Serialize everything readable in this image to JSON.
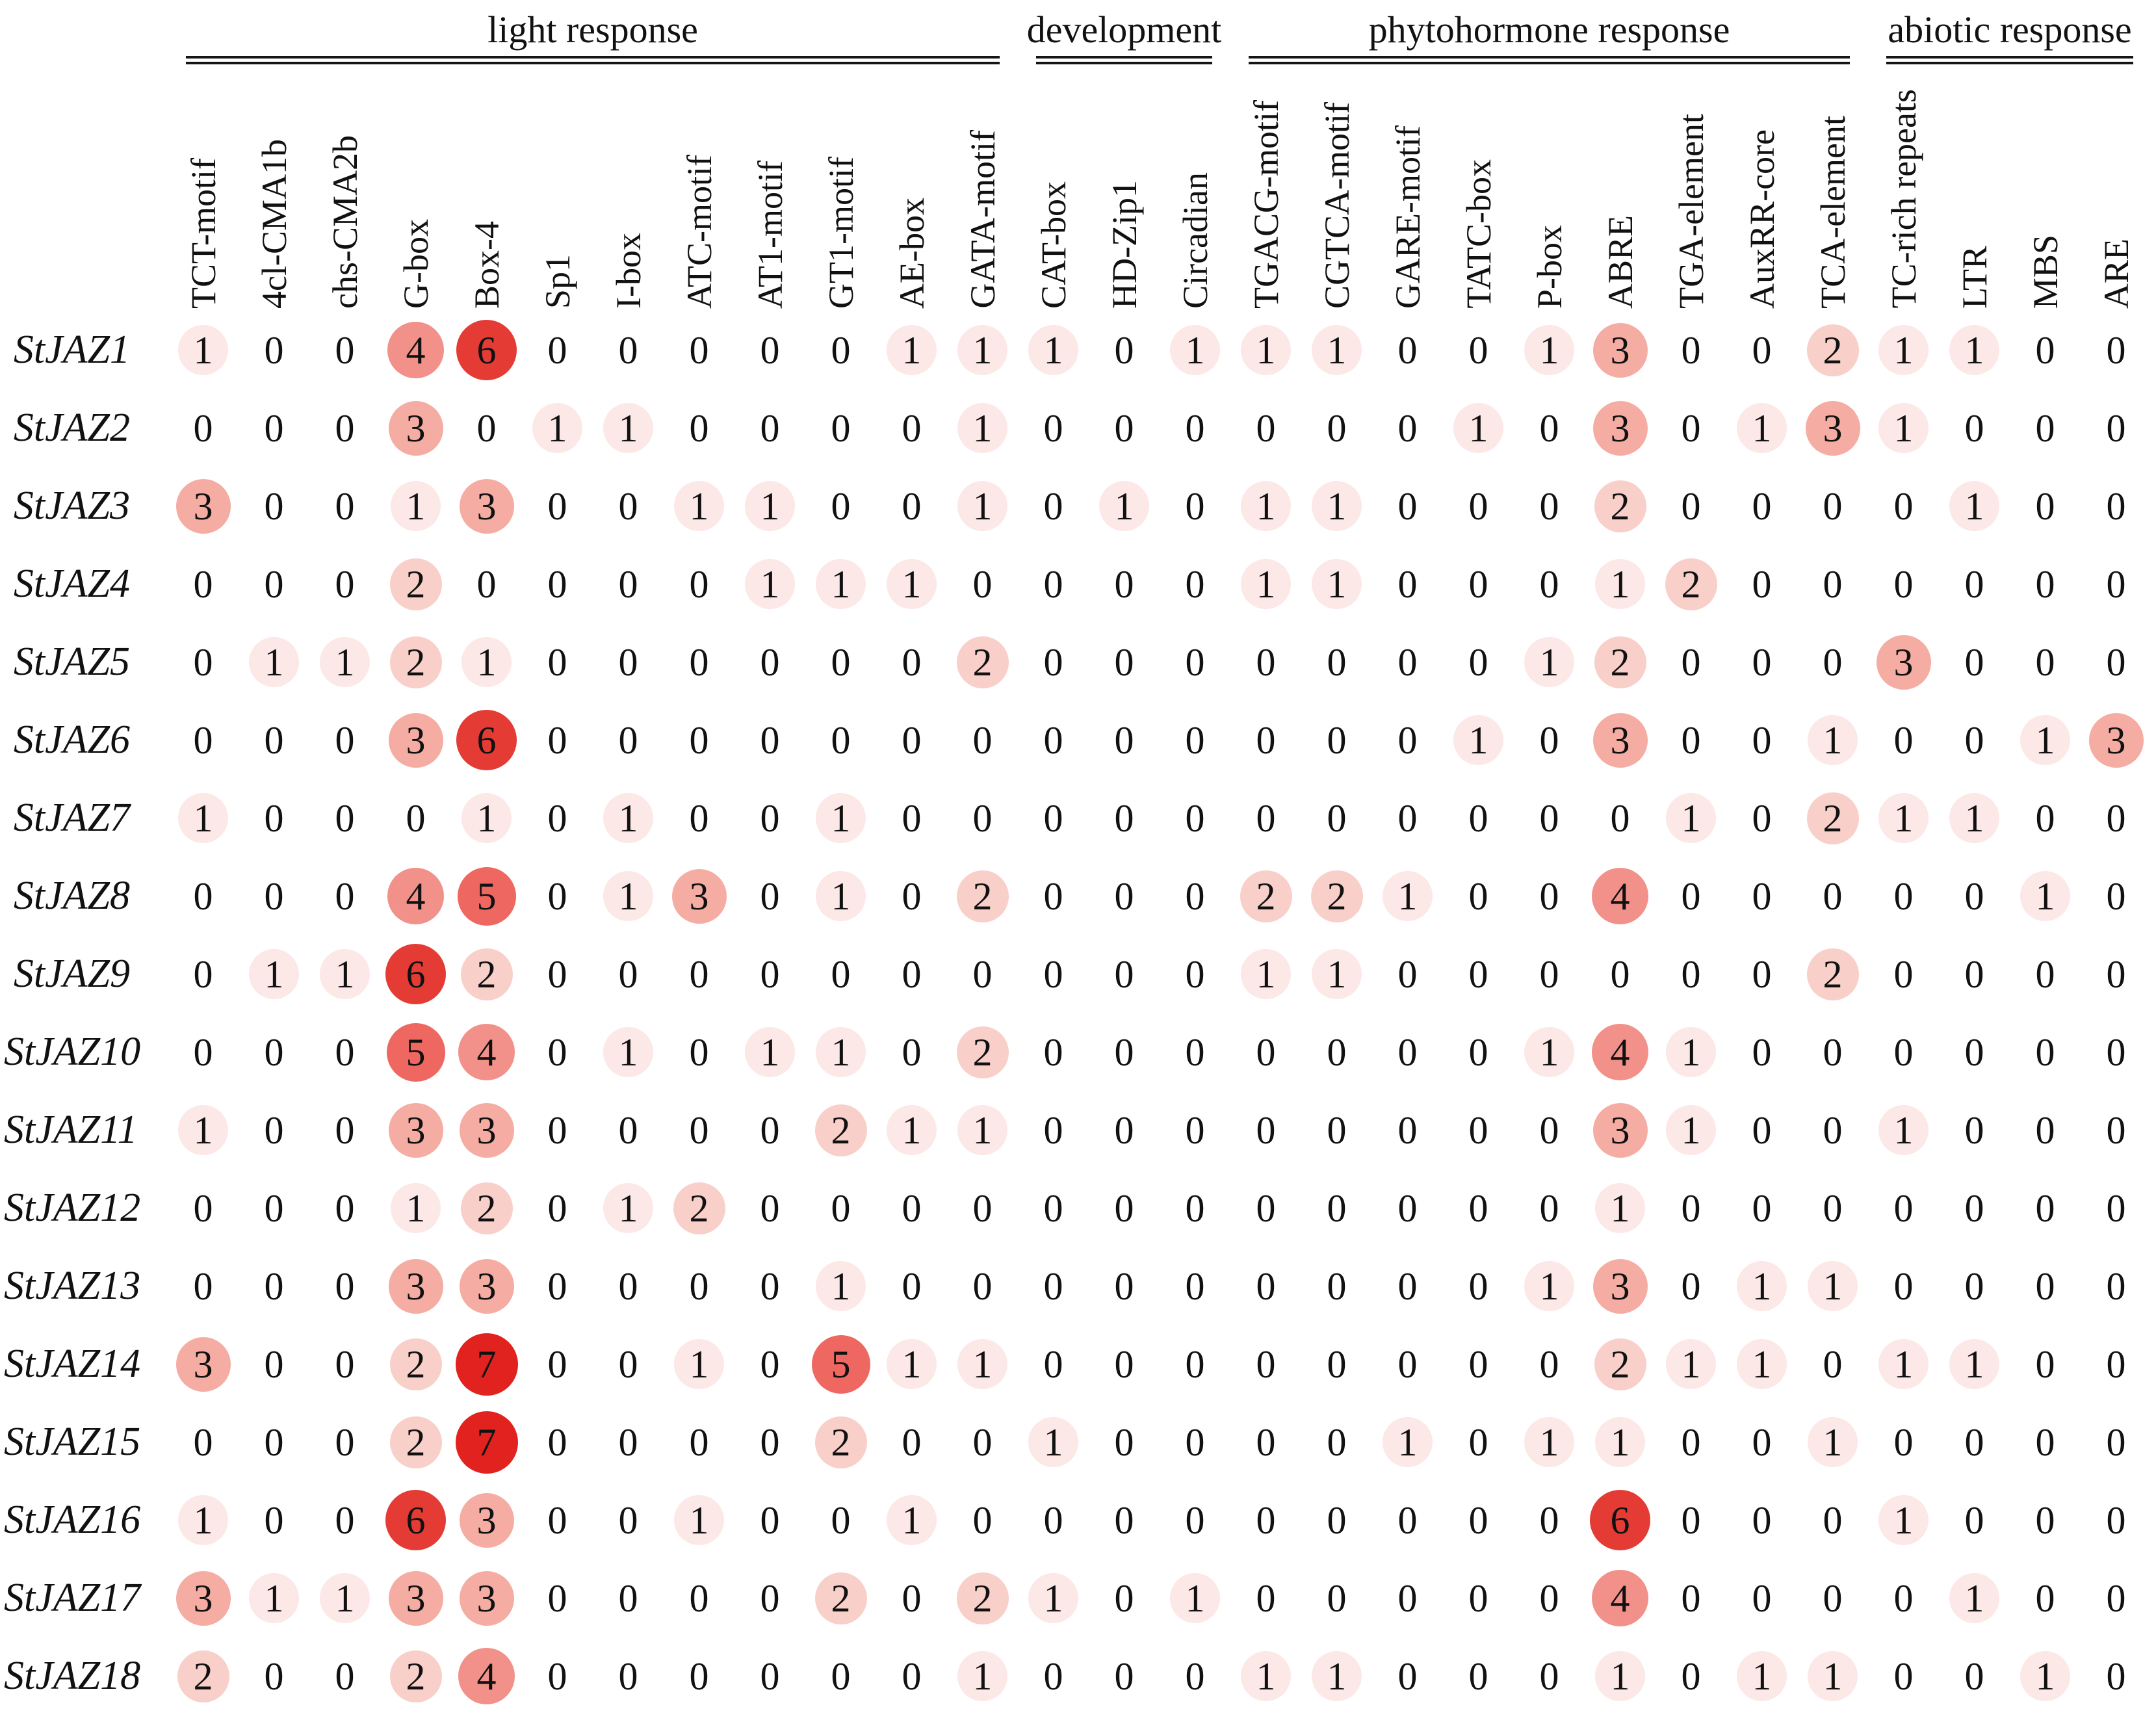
{
  "style": {
    "text_color": "#111111",
    "zero_color": "#111111",
    "value_colors": {
      "1": "#fce8e6",
      "2": "#f9cfc9",
      "3": "#f5aca3",
      "4": "#f1918a",
      "5": "#ee6760",
      "6": "#e43c35",
      "7": "#e1221f"
    }
  },
  "chart_data": {
    "type": "heatmap",
    "subtype": "bubble-count-matrix",
    "title": "",
    "legend_position": "none",
    "grid": false,
    "value_range": [
      0,
      7
    ],
    "colorscale": "white to red, darker red = higher count",
    "column_groups": [
      {
        "label": "light response",
        "span": 12
      },
      {
        "label": "development",
        "span": 3
      },
      {
        "label": "phytohormone response",
        "span": 9
      },
      {
        "label": "abiotic response",
        "span": 4
      }
    ],
    "columns": [
      "TCT-motif",
      "4cl-CMA1b",
      "chs-CMA2b",
      "G-box",
      "Box-4",
      "Sp1",
      "I-box",
      "ATC-motif",
      "AT1-motif",
      "GT1-motif",
      "AE-box",
      "GATA-motif",
      "CAT-box",
      "HD-Zip1",
      "Circadian",
      "TGACG-motif",
      "CGTCA-motif",
      "GARE-motif",
      "TATC-box",
      "P-box",
      "ABRE",
      "TGA-element",
      "AuxRR-core",
      "TCA-element",
      "TC-rich repeats",
      "LTR",
      "MBS",
      "ARE"
    ],
    "rows": [
      {
        "gene": "StJAZ1",
        "values": [
          1,
          0,
          0,
          4,
          6,
          0,
          0,
          0,
          0,
          0,
          1,
          1,
          1,
          0,
          1,
          1,
          1,
          0,
          0,
          1,
          3,
          0,
          0,
          2,
          1,
          1,
          0,
          0
        ]
      },
      {
        "gene": "StJAZ2",
        "values": [
          0,
          0,
          0,
          3,
          0,
          1,
          1,
          0,
          0,
          0,
          0,
          1,
          0,
          0,
          0,
          0,
          0,
          0,
          1,
          0,
          3,
          0,
          1,
          3,
          1,
          0,
          0,
          0
        ]
      },
      {
        "gene": "StJAZ3",
        "values": [
          3,
          0,
          0,
          1,
          3,
          0,
          0,
          1,
          1,
          0,
          0,
          1,
          0,
          1,
          0,
          1,
          1,
          0,
          0,
          0,
          2,
          0,
          0,
          0,
          0,
          1,
          0,
          0
        ]
      },
      {
        "gene": "StJAZ4",
        "values": [
          0,
          0,
          0,
          2,
          0,
          0,
          0,
          0,
          1,
          1,
          1,
          0,
          0,
          0,
          0,
          1,
          1,
          0,
          0,
          0,
          1,
          2,
          0,
          0,
          0,
          0,
          0,
          0
        ]
      },
      {
        "gene": "StJAZ5",
        "values": [
          0,
          1,
          1,
          2,
          1,
          0,
          0,
          0,
          0,
          0,
          0,
          2,
          0,
          0,
          0,
          0,
          0,
          0,
          0,
          1,
          2,
          0,
          0,
          0,
          3,
          0,
          0,
          0
        ]
      },
      {
        "gene": "StJAZ6",
        "values": [
          0,
          0,
          0,
          3,
          6,
          0,
          0,
          0,
          0,
          0,
          0,
          0,
          0,
          0,
          0,
          0,
          0,
          0,
          1,
          0,
          3,
          0,
          0,
          1,
          0,
          0,
          1,
          3
        ]
      },
      {
        "gene": "StJAZ7",
        "values": [
          1,
          0,
          0,
          0,
          1,
          0,
          1,
          0,
          0,
          1,
          0,
          0,
          0,
          0,
          0,
          0,
          0,
          0,
          0,
          0,
          0,
          1,
          0,
          2,
          1,
          1,
          0,
          0
        ]
      },
      {
        "gene": "StJAZ8",
        "values": [
          0,
          0,
          0,
          4,
          5,
          0,
          1,
          3,
          0,
          1,
          0,
          2,
          0,
          0,
          0,
          2,
          2,
          1,
          0,
          0,
          4,
          0,
          0,
          0,
          0,
          0,
          1,
          0
        ]
      },
      {
        "gene": "StJAZ9",
        "values": [
          0,
          1,
          1,
          6,
          2,
          0,
          0,
          0,
          0,
          0,
          0,
          0,
          0,
          0,
          0,
          1,
          1,
          0,
          0,
          0,
          0,
          0,
          0,
          2,
          0,
          0,
          0,
          0
        ]
      },
      {
        "gene": "StJAZ10",
        "values": [
          0,
          0,
          0,
          5,
          4,
          0,
          1,
          0,
          1,
          1,
          0,
          2,
          0,
          0,
          0,
          0,
          0,
          0,
          0,
          1,
          4,
          1,
          0,
          0,
          0,
          0,
          0,
          0
        ]
      },
      {
        "gene": "StJAZ11",
        "values": [
          1,
          0,
          0,
          3,
          3,
          0,
          0,
          0,
          0,
          2,
          1,
          1,
          0,
          0,
          0,
          0,
          0,
          0,
          0,
          0,
          3,
          1,
          0,
          0,
          1,
          0,
          0,
          0
        ]
      },
      {
        "gene": "StJAZ12",
        "values": [
          0,
          0,
          0,
          1,
          2,
          0,
          1,
          2,
          0,
          0,
          0,
          0,
          0,
          0,
          0,
          0,
          0,
          0,
          0,
          0,
          1,
          0,
          0,
          0,
          0,
          0,
          0,
          0
        ]
      },
      {
        "gene": "StJAZ13",
        "values": [
          0,
          0,
          0,
          3,
          3,
          0,
          0,
          0,
          0,
          1,
          0,
          0,
          0,
          0,
          0,
          0,
          0,
          0,
          0,
          1,
          3,
          0,
          1,
          1,
          0,
          0,
          0,
          0
        ]
      },
      {
        "gene": "StJAZ14",
        "values": [
          3,
          0,
          0,
          2,
          7,
          0,
          0,
          1,
          0,
          5,
          1,
          1,
          0,
          0,
          0,
          0,
          0,
          0,
          0,
          0,
          2,
          1,
          1,
          0,
          1,
          1,
          0,
          0
        ]
      },
      {
        "gene": "StJAZ15",
        "values": [
          0,
          0,
          0,
          2,
          7,
          0,
          0,
          0,
          0,
          2,
          0,
          0,
          1,
          0,
          0,
          0,
          0,
          1,
          0,
          1,
          1,
          0,
          0,
          1,
          0,
          0,
          0,
          0
        ]
      },
      {
        "gene": "StJAZ16",
        "values": [
          1,
          0,
          0,
          6,
          3,
          0,
          0,
          1,
          0,
          0,
          1,
          0,
          0,
          0,
          0,
          0,
          0,
          0,
          0,
          0,
          6,
          0,
          0,
          0,
          1,
          0,
          0,
          0
        ]
      },
      {
        "gene": "StJAZ17",
        "values": [
          3,
          1,
          1,
          3,
          3,
          0,
          0,
          0,
          0,
          2,
          0,
          2,
          1,
          0,
          1,
          0,
          0,
          0,
          0,
          0,
          4,
          0,
          0,
          0,
          0,
          1,
          0,
          0
        ]
      },
      {
        "gene": "StJAZ18",
        "values": [
          2,
          0,
          0,
          2,
          4,
          0,
          0,
          0,
          0,
          0,
          0,
          1,
          0,
          0,
          0,
          1,
          1,
          0,
          0,
          0,
          1,
          0,
          1,
          1,
          0,
          0,
          1,
          0
        ]
      }
    ]
  }
}
